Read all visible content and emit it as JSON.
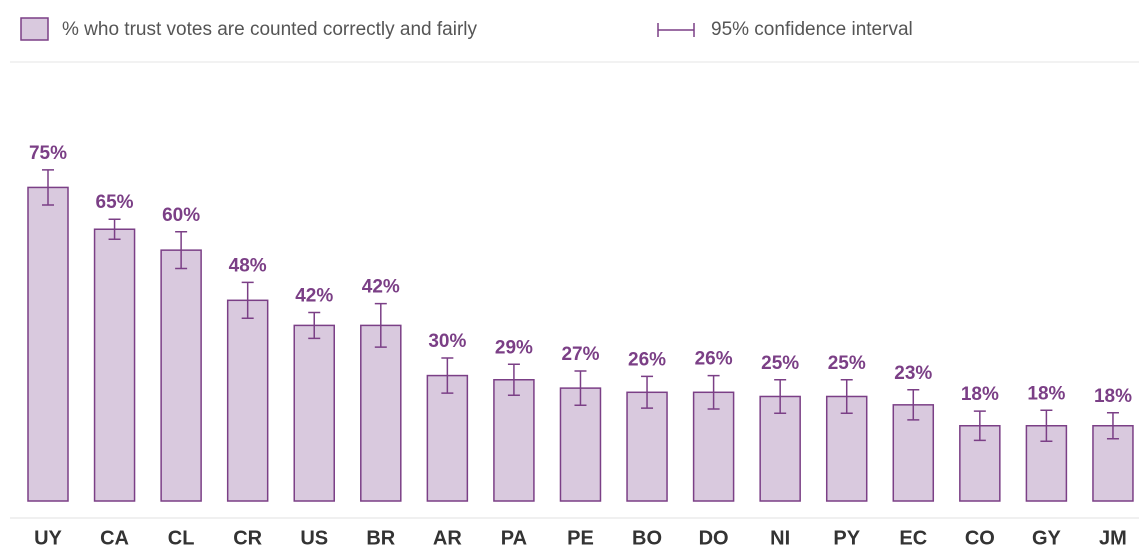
{
  "chart_data": {
    "type": "bar",
    "categories": [
      "UY",
      "CA",
      "CL",
      "CR",
      "US",
      "BR",
      "AR",
      "PA",
      "PE",
      "BO",
      "DO",
      "NI",
      "PY",
      "EC",
      "CO",
      "GY",
      "JM"
    ],
    "series": [
      {
        "name": "% who trust votes are counted correctly and fairly",
        "color": "#d9c9de",
        "edge_color": "#7b3f86",
        "values": [
          75,
          65,
          60,
          48,
          42,
          42,
          30,
          29,
          27,
          26,
          26,
          25,
          25,
          23,
          18,
          18,
          18
        ],
        "value_labels": [
          "75%",
          "65%",
          "60%",
          "48%",
          "42%",
          "42%",
          "30%",
          "29%",
          "27%",
          "26%",
          "26%",
          "25%",
          "25%",
          "23%",
          "18%",
          "18%",
          "18%"
        ],
        "errors": [
          4.2,
          2.4,
          4.4,
          4.3,
          3.1,
          5.2,
          4.2,
          3.7,
          4.1,
          3.8,
          4.0,
          4.0,
          4.0,
          3.6,
          3.5,
          3.7,
          3.1
        ]
      }
    ],
    "error_label": "95% confidence interval",
    "ylim": [
      0,
      105
    ]
  }
}
